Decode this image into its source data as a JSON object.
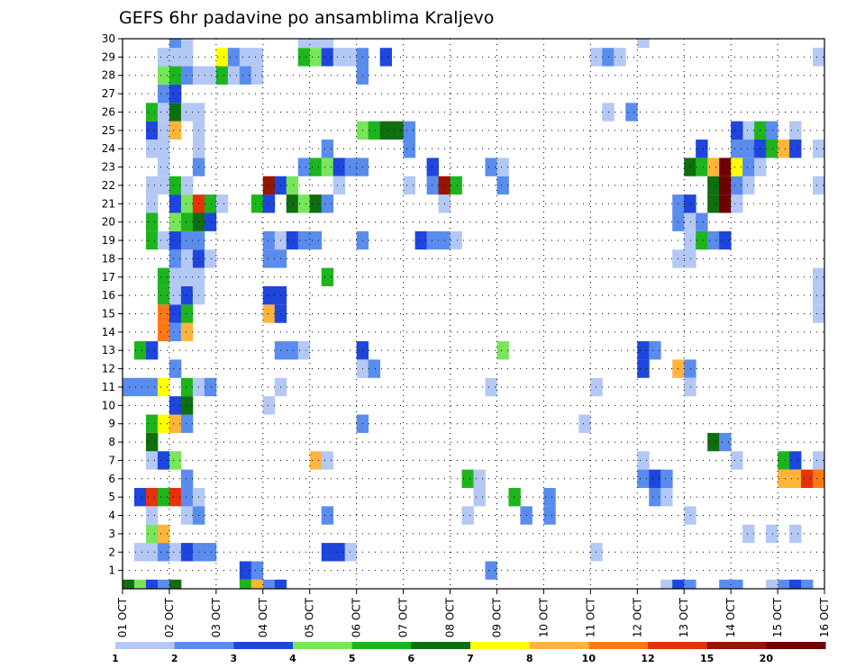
{
  "chart_data": {
    "type": "heatmap",
    "title": "GEFS 6hr padavine po ansamblima Kraljevo",
    "xlabel": "",
    "ylabel": "",
    "x_labels": [
      "01 OCT",
      "02 OCT",
      "03 OCT",
      "04 OCT",
      "05 OCT",
      "06 OCT",
      "07 OCT",
      "08 OCT",
      "09 OCT",
      "10 OCT",
      "11 OCT",
      "12 OCT",
      "13 OCT",
      "14 OCT",
      "15 OCT",
      "16 OCT"
    ],
    "y_labels": [
      "1",
      "2",
      "3",
      "4",
      "5",
      "6",
      "7",
      "8",
      "9",
      "10",
      "11",
      "12",
      "13",
      "14",
      "15",
      "16",
      "17",
      "18",
      "19",
      "20",
      "21",
      "22",
      "23",
      "24",
      "25",
      "26",
      "27",
      "28",
      "29",
      "30"
    ],
    "x_range": [
      0,
      60
    ],
    "y_range": [
      0,
      30
    ],
    "grid": true,
    "colorbar": {
      "labels": [
        "1",
        "2",
        "3",
        "4",
        "5",
        "6",
        "7",
        "8",
        "10",
        "12",
        "15",
        "20"
      ],
      "colors": [
        "#b4c8f5",
        "#5a8ced",
        "#1e46dc",
        "#78e65a",
        "#1eb41e",
        "#0f6e0f",
        "#ffff00",
        "#ffb43c",
        "#ff7814",
        "#e6320a",
        "#961400",
        "#6e0000"
      ]
    },
    "cells_note_levels": "level 1..12 index into colorbar.colors",
    "cells": [
      [
        -1,
        0,
        6
      ],
      [
        -1,
        1,
        4
      ],
      [
        -1,
        2,
        1
      ],
      [
        -1,
        2,
        2
      ],
      [
        -1,
        2,
        3
      ],
      [
        -1,
        3,
        2
      ],
      [
        -1,
        4,
        6
      ],
      [
        1,
        1,
        1
      ],
      [
        1,
        2,
        1
      ],
      [
        1,
        3,
        2
      ],
      [
        1,
        4,
        1
      ],
      [
        1,
        5,
        3
      ],
      [
        1,
        6,
        2
      ],
      [
        1,
        7,
        2
      ],
      [
        2,
        2,
        4
      ],
      [
        2,
        3,
        8
      ],
      [
        3,
        2,
        1
      ],
      [
        3,
        5,
        1
      ],
      [
        4,
        1,
        3
      ],
      [
        4,
        2,
        10
      ],
      [
        4,
        3,
        5
      ],
      [
        4,
        4,
        10
      ],
      [
        4,
        5,
        2
      ],
      [
        4,
        6,
        1
      ],
      [
        5,
        5,
        2
      ],
      [
        6,
        2,
        1
      ],
      [
        6,
        3,
        3
      ],
      [
        6,
        4,
        4
      ],
      [
        7,
        2,
        6
      ],
      [
        8,
        2,
        5
      ],
      [
        8,
        3,
        7
      ],
      [
        8,
        4,
        8
      ],
      [
        8,
        5,
        2
      ],
      [
        9,
        4,
        3
      ],
      [
        9,
        5,
        6
      ],
      [
        10,
        0,
        2
      ],
      [
        10,
        1,
        2
      ],
      [
        10,
        2,
        2
      ],
      [
        10,
        3,
        7
      ],
      [
        10,
        5,
        5
      ],
      [
        10,
        6,
        1
      ],
      [
        10,
        7,
        2
      ],
      [
        11,
        4,
        2
      ],
      [
        12,
        1,
        5
      ],
      [
        12,
        2,
        3
      ],
      [
        13,
        3,
        9
      ],
      [
        13,
        4,
        2
      ],
      [
        13,
        5,
        8
      ],
      [
        14,
        3,
        9
      ],
      [
        14,
        4,
        3
      ],
      [
        14,
        5,
        5
      ],
      [
        15,
        3,
        5
      ],
      [
        15,
        4,
        1
      ],
      [
        15,
        5,
        3
      ],
      [
        16,
        3,
        5
      ],
      [
        16,
        4,
        1
      ],
      [
        16,
        5,
        1
      ],
      [
        17,
        4,
        2
      ],
      [
        17,
        5,
        1
      ],
      [
        17,
        6,
        3
      ],
      [
        17,
        7,
        1
      ],
      [
        18,
        2,
        5
      ],
      [
        18,
        3,
        1
      ],
      [
        18,
        4,
        3
      ],
      [
        18,
        5,
        2
      ],
      [
        18,
        6,
        2
      ],
      [
        19,
        2,
        5
      ],
      [
        19,
        4,
        4
      ],
      [
        19,
        5,
        5
      ],
      [
        19,
        6,
        6
      ],
      [
        19,
        7,
        3
      ],
      [
        20,
        2,
        1
      ],
      [
        20,
        4,
        3
      ],
      [
        20,
        5,
        4
      ],
      [
        20,
        6,
        10
      ],
      [
        20,
        7,
        5
      ],
      [
        20,
        8,
        1
      ],
      [
        21,
        2,
        1
      ],
      [
        21,
        3,
        1
      ],
      [
        21,
        4,
        5
      ],
      [
        21,
        5,
        1
      ],
      [
        22,
        3,
        1
      ],
      [
        23,
        2,
        1
      ],
      [
        23,
        3,
        1
      ],
      [
        24,
        2,
        3
      ],
      [
        24,
        3,
        1
      ],
      [
        24,
        4,
        8
      ],
      [
        25,
        2,
        5
      ],
      [
        25,
        3,
        1
      ],
      [
        25,
        4,
        6
      ],
      [
        25,
        5,
        1
      ],
      [
        25,
        6,
        1
      ],
      [
        26,
        3,
        2
      ],
      [
        26,
        4,
        3
      ],
      [
        27,
        3,
        4
      ],
      [
        27,
        4,
        5
      ],
      [
        27,
        5,
        2
      ],
      [
        27,
        6,
        1
      ],
      [
        27,
        7,
        1
      ],
      [
        28,
        3,
        1
      ],
      [
        28,
        4,
        1
      ],
      [
        28,
        5,
        1
      ],
      [
        29,
        4,
        2
      ],
      [
        29,
        5,
        1
      ],
      [
        30,
        4,
        1
      ],
      [
        30,
        5,
        1
      ],
      [
        3,
        6,
        2
      ],
      [
        10,
        6,
        1
      ],
      [
        15,
        6,
        1
      ],
      [
        16,
        6,
        1
      ],
      [
        22,
        6,
        2
      ],
      [
        23,
        6,
        1
      ],
      [
        24,
        6,
        1
      ],
      [
        27,
        8,
        5
      ],
      [
        27,
        9,
        1
      ],
      [
        27,
        10,
        2
      ],
      [
        27,
        11,
        1
      ],
      [
        28,
        8,
        7
      ],
      [
        28,
        9,
        2
      ],
      [
        28,
        10,
        1
      ],
      [
        28,
        11,
        1
      ],
      [
        0,
        10,
        3
      ],
      [
        0,
        11,
        2
      ],
      [
        -1,
        10,
        5
      ],
      [
        -1,
        11,
        8
      ],
      [
        -1,
        12,
        2
      ],
      [
        -1,
        13,
        3
      ],
      [
        20,
        11,
        5
      ],
      [
        20,
        12,
        3
      ],
      [
        18,
        12,
        2
      ],
      [
        18,
        13,
        1
      ],
      [
        18,
        14,
        3
      ],
      [
        18,
        15,
        2
      ],
      [
        21,
        12,
        11
      ],
      [
        21,
        13,
        3
      ],
      [
        21,
        14,
        4
      ],
      [
        17,
        12,
        2
      ],
      [
        17,
        13,
        2
      ],
      [
        14,
        12,
        8
      ],
      [
        14,
        13,
        3
      ],
      [
        15,
        13,
        3
      ],
      [
        15,
        12,
        3
      ],
      [
        12,
        13,
        2
      ],
      [
        12,
        14,
        2
      ],
      [
        12,
        15,
        1
      ],
      [
        9,
        12,
        1
      ],
      [
        10,
        13,
        1
      ],
      [
        20,
        14,
        6
      ],
      [
        20,
        15,
        4
      ],
      [
        20,
        16,
        6
      ],
      [
        20,
        17,
        2
      ],
      [
        22,
        15,
        2
      ],
      [
        22,
        16,
        5
      ],
      [
        22,
        17,
        4
      ],
      [
        22,
        18,
        3
      ],
      [
        22,
        19,
        2
      ],
      [
        22,
        20,
        2
      ],
      [
        28,
        15,
        5
      ],
      [
        28,
        16,
        4
      ],
      [
        28,
        17,
        3
      ],
      [
        28,
        18,
        1
      ],
      [
        28,
        19,
        1
      ],
      [
        28,
        20,
        2
      ],
      [
        29,
        15,
        1
      ],
      [
        29,
        16,
        1
      ],
      [
        29,
        17,
        1
      ],
      [
        18,
        16,
        2
      ],
      [
        6,
        16,
        8
      ],
      [
        6,
        17,
        1
      ],
      [
        3,
        17,
        2
      ],
      [
        1,
        17,
        3
      ],
      [
        1,
        18,
        3
      ],
      [
        1,
        19,
        1
      ],
      [
        16,
        17,
        5
      ],
      [
        3,
        17,
        2
      ],
      [
        30,
        17,
        6
      ],
      [
        23,
        17,
        2
      ],
      [
        21,
        18,
        1
      ],
      [
        12,
        20,
        3
      ],
      [
        11,
        20,
        1
      ],
      [
        11,
        21,
        2
      ],
      [
        18,
        20,
        2
      ],
      [
        24,
        20,
        4
      ],
      [
        24,
        21,
        5
      ],
      [
        24,
        22,
        6
      ],
      [
        24,
        23,
        6
      ],
      [
        24,
        24,
        2
      ],
      [
        8,
        20,
        2
      ],
      [
        27,
        20,
        2
      ],
      [
        28,
        22,
        3
      ],
      [
        21,
        24,
        1
      ],
      [
        23,
        24,
        2
      ],
      [
        18,
        25,
        3
      ],
      [
        18,
        26,
        2
      ],
      [
        18,
        27,
        2
      ],
      [
        18,
        28,
        1
      ],
      [
        21,
        26,
        2
      ],
      [
        22,
        26,
        3
      ],
      [
        20,
        27,
        1
      ],
      [
        21,
        27,
        11
      ],
      [
        21,
        28,
        5
      ],
      [
        3,
        29,
        1
      ],
      [
        5,
        29,
        5
      ],
      [
        5,
        30,
        1
      ],
      [
        4,
        30,
        1
      ],
      [
        0,
        31,
        2
      ],
      [
        22,
        31,
        2
      ],
      [
        22,
        32,
        1
      ],
      [
        21,
        32,
        2
      ],
      [
        10,
        31,
        1
      ],
      [
        12,
        32,
        4
      ],
      [
        3,
        34,
        2
      ],
      [
        4,
        33,
        5
      ],
      [
        4,
        36,
        2
      ],
      [
        3,
        36,
        2
      ],
      [
        1,
        40,
        1
      ],
      [
        28,
        40,
        1
      ],
      [
        28,
        41,
        2
      ],
      [
        28,
        42,
        1
      ],
      [
        10,
        40,
        1
      ],
      [
        6,
        44,
        1
      ],
      [
        5,
        44,
        2
      ],
      [
        5,
        45,
        3
      ],
      [
        4,
        45,
        2
      ],
      [
        4,
        46,
        1
      ],
      [
        5,
        46,
        2
      ],
      [
        11,
        44,
        3
      ],
      [
        12,
        44,
        3
      ],
      [
        12,
        45,
        2
      ],
      [
        11,
        47,
        8
      ],
      [
        11,
        48,
        2
      ],
      [
        -1,
        46,
        1
      ],
      [
        -1,
        47,
        3
      ],
      [
        -1,
        48,
        2
      ],
      [
        3,
        48,
        1
      ],
      [
        10,
        48,
        1
      ],
      [
        7,
        50,
        6
      ],
      [
        7,
        51,
        2
      ],
      [
        17,
        47,
        1
      ],
      [
        17,
        48,
        1
      ],
      [
        18,
        48,
        1
      ],
      [
        18,
        49,
        5
      ],
      [
        18,
        50,
        2
      ],
      [
        18,
        51,
        3
      ],
      [
        19,
        47,
        2
      ],
      [
        19,
        48,
        1
      ],
      [
        19,
        49,
        2
      ],
      [
        20,
        47,
        2
      ],
      [
        20,
        48,
        3
      ],
      [
        20,
        50,
        6
      ],
      [
        20,
        51,
        12
      ],
      [
        20,
        52,
        1
      ],
      [
        21,
        50,
        6
      ],
      [
        21,
        51,
        12
      ],
      [
        21,
        52,
        2
      ],
      [
        21,
        53,
        1
      ],
      [
        22,
        48,
        6
      ],
      [
        22,
        49,
        5
      ],
      [
        22,
        50,
        8
      ],
      [
        22,
        51,
        12
      ],
      [
        22,
        52,
        7
      ],
      [
        22,
        53,
        2
      ],
      [
        22,
        54,
        1
      ],
      [
        23,
        52,
        2
      ],
      [
        23,
        53,
        2
      ],
      [
        23,
        54,
        3
      ],
      [
        23,
        55,
        5
      ],
      [
        23,
        56,
        8
      ],
      [
        23,
        57,
        3
      ],
      [
        23,
        59,
        1
      ],
      [
        24,
        53,
        1
      ],
      [
        24,
        54,
        5
      ],
      [
        24,
        55,
        2
      ],
      [
        24,
        57,
        1
      ],
      [
        24,
        60,
        3
      ],
      [
        6,
        52,
        1
      ],
      [
        6,
        56,
        5
      ],
      [
        6,
        57,
        3
      ],
      [
        6,
        59,
        1
      ],
      [
        5,
        56,
        8
      ],
      [
        5,
        57,
        8
      ],
      [
        5,
        58,
        10
      ],
      [
        5,
        59,
        9
      ],
      [
        5,
        60,
        5
      ],
      [
        2,
        53,
        1
      ],
      [
        2,
        55,
        1
      ],
      [
        2,
        57,
        1
      ],
      [
        16,
        59,
        1
      ],
      [
        16,
        60,
        2
      ],
      [
        15,
        59,
        1
      ],
      [
        15,
        60,
        2
      ],
      [
        14,
        59,
        1
      ],
      [
        30,
        52,
        2
      ],
      [
        30,
        53,
        1
      ],
      [
        30,
        42,
        5
      ],
      [
        30,
        60,
        1
      ],
      [
        28,
        59,
        1
      ],
      [
        -1,
        51,
        2
      ],
      [
        -1,
        52,
        2
      ],
      [
        -1,
        56,
        2
      ],
      [
        -1,
        57,
        3
      ],
      [
        -1,
        58,
        2
      ],
      [
        -1,
        55,
        1
      ],
      [
        -1,
        11,
        8
      ],
      [
        21,
        59,
        1
      ],
      [
        21,
        60,
        9
      ],
      [
        23,
        49,
        3
      ],
      [
        24,
        52,
        3
      ],
      [
        25,
        41,
        1
      ],
      [
        25,
        43,
        2
      ],
      [
        29,
        44,
        1
      ],
      [
        8,
        39,
        1
      ]
    ]
  }
}
